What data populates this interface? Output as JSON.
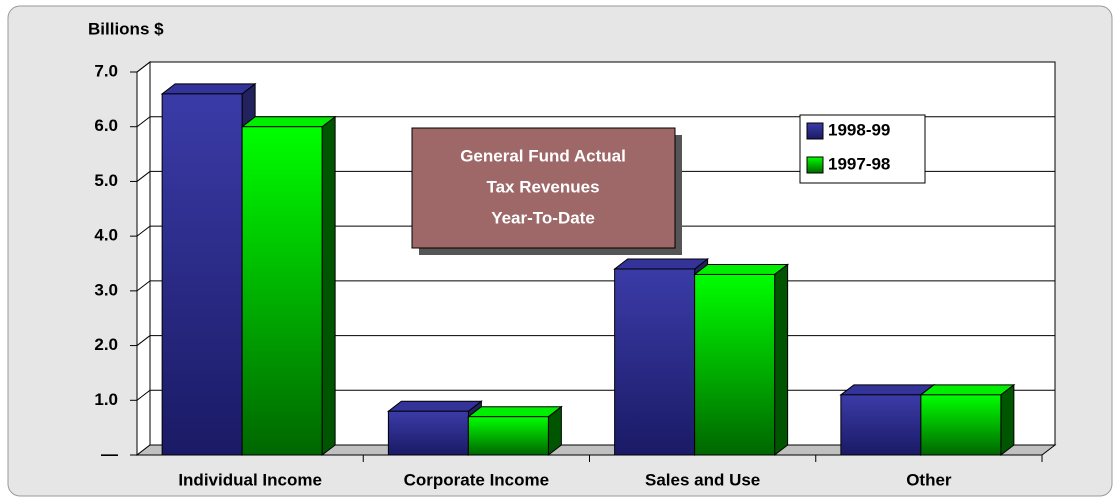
{
  "chart_data": {
    "type": "bar3d",
    "y_label": "Billions $",
    "annotation": [
      "General Fund Actual",
      "Tax Revenues",
      "Year-To-Date"
    ],
    "categories": [
      "Individual Income",
      "Corporate Income",
      "Sales and Use",
      "Other"
    ],
    "series": [
      {
        "name": "1998-99",
        "color": "#333399",
        "values": [
          6.6,
          0.8,
          3.4,
          1.1
        ]
      },
      {
        "name": "1997-98",
        "color": "#00ee00",
        "values": [
          6.0,
          0.7,
          3.3,
          1.1
        ]
      }
    ],
    "ylim": [
      0,
      7
    ],
    "yticks": [
      {
        "value": 0,
        "label": "—"
      },
      {
        "value": 1,
        "label": "1.0"
      },
      {
        "value": 2,
        "label": "2.0"
      },
      {
        "value": 3,
        "label": "3.0"
      },
      {
        "value": 4,
        "label": "4.0"
      },
      {
        "value": 5,
        "label": "5.0"
      },
      {
        "value": 6,
        "label": "6.0"
      },
      {
        "value": 7,
        "label": "7.0"
      }
    ],
    "grid": true
  }
}
